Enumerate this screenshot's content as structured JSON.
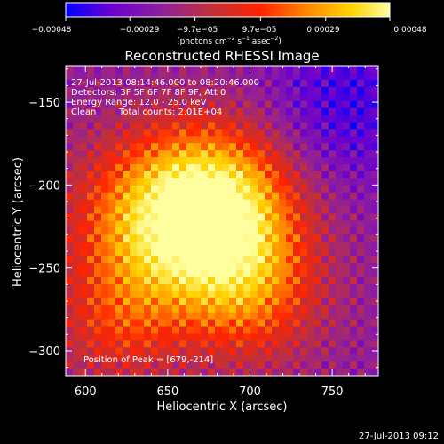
{
  "chart_data": {
    "type": "heatmap",
    "title": "Reconstructed RHESSI Image",
    "xlabel": "Heliocentric X (arcsec)",
    "ylabel": "Heliocentric Y (arcsec)",
    "xlim": [
      588,
      778
    ],
    "ylim": [
      -315,
      -128
    ],
    "x_ticks": [
      600,
      650,
      700,
      750
    ],
    "y_ticks": [
      -150,
      -200,
      -250,
      -300
    ],
    "x_tick_labels": [
      "600",
      "650",
      "700",
      "750"
    ],
    "y_tick_labels": [
      "−150",
      "−200",
      "−250",
      "−300"
    ],
    "colorbar": {
      "range": [
        -0.00048,
        0.00048
      ],
      "ticks": [
        -0.00048,
        -0.00029,
        -9.7e-05,
        9.7e-05,
        0.00029,
        0.00048
      ],
      "tick_labels": [
        "−0.00048",
        "−0.00029",
        "−9.7e−05",
        "9.7e−05",
        "0.00029",
        "0.00048"
      ],
      "unit_parts": [
        "(photons cm",
        "−2",
        " s",
        "−1",
        " asec",
        "−2",
        ")"
      ],
      "colors": [
        "#0000ff",
        "#6a00d0",
        "#90209a",
        "#c0303a",
        "#ff2400",
        "#ff8a00",
        "#ffd200",
        "#ffffa0"
      ]
    },
    "annotations": {
      "time_range": "27-Jul-2013 08:14:46.000 to 08:20:46.000",
      "detectors": "Detectors: 3F 5F 6F 7F 8F 9F, Att 0",
      "energy": "Energy Range: 12.0 - 25.0 keV",
      "clean": "Clean",
      "counts": "Total counts: 2.01E+04",
      "peak": "Position of Peak = [679,-214]"
    },
    "peak": {
      "x": 679,
      "y": -214
    },
    "footer_timestamp": "27-Jul-2013 09:12"
  }
}
